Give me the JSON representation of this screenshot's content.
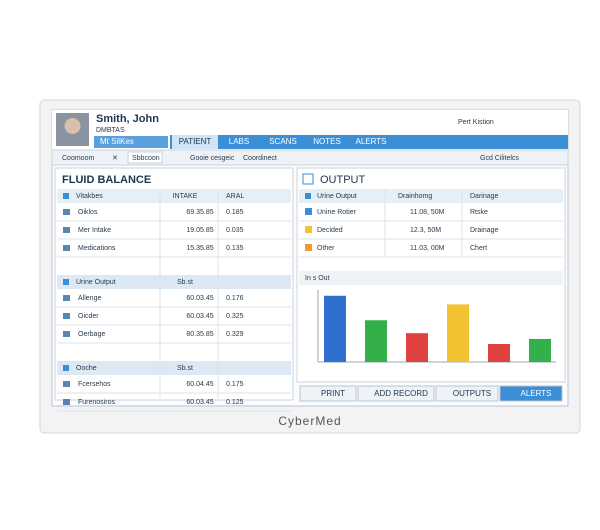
{
  "header": {
    "name": "Smith, John",
    "id": "DMBTAS",
    "tag": "Mt SilKes",
    "user": "Pert Kistion"
  },
  "tabs": [
    "PATIENT",
    "LABS",
    "SCANS",
    "NOTES",
    "ALERTS"
  ],
  "toolbar": [
    "Coomoom",
    "Sbbcoon",
    "Gooie cesgeic",
    "Coordinect",
    "Gcd Cilitelcs"
  ],
  "fluid_balance": {
    "title": "FLUID BALANCE",
    "sections": [
      {
        "header": [
          "Vitakbes",
          "INTAKE",
          "ARAL"
        ],
        "rows": [
          [
            "Oiklos",
            "69.35.85",
            "0.185"
          ],
          [
            "Mer Intake",
            "19.05.85",
            "0.035"
          ],
          [
            "Medications",
            "15.35.85",
            "0.135"
          ]
        ]
      },
      {
        "header": [
          "Urine Output",
          "Sb.st"
        ],
        "rows": [
          [
            "Allenge",
            "60.03.45",
            "0.176"
          ],
          [
            "Oicder",
            "60.03.45",
            "0.325"
          ],
          [
            "Oerbage",
            "80.35.85",
            "0.329"
          ]
        ]
      },
      {
        "header": [
          "Ooche",
          "Sb.st"
        ],
        "rows": [
          [
            "Fcersehos",
            "60.04.45",
            "0.175"
          ],
          [
            "Furenosiros",
            "60.03.45",
            "0.125"
          ]
        ]
      }
    ]
  },
  "output": {
    "title": "OUTPUT",
    "header": [
      "Urine Output",
      "Drainhomg",
      "Darinage"
    ],
    "rows": [
      [
        "Unine Rotier",
        "11.08, 50M",
        "Rtske"
      ],
      [
        "Decided",
        "12.3, 50M",
        "Drainage"
      ],
      [
        "Other",
        "11.03, 00M",
        "Chert"
      ]
    ]
  },
  "chart": {
    "title": "In s Out",
    "ylim": [
      0,
      10
    ],
    "values": [
      9.2,
      5.8,
      4.0,
      8.0,
      2.5,
      3.2
    ],
    "colors": [
      "#2f6fd0",
      "#33b04a",
      "#e04040",
      "#f2c230",
      "#e04040",
      "#33b04a"
    ]
  },
  "buttons": [
    "PRINT",
    "ADD RECORD",
    "OUTPUTS",
    "ALERTS"
  ],
  "brand": "CyberMed"
}
